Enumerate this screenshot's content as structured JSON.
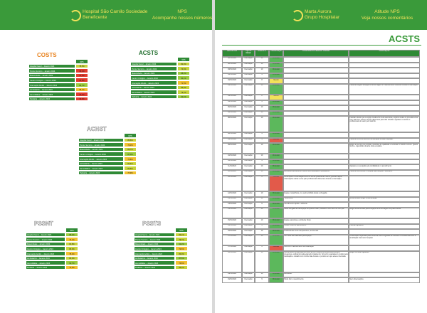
{
  "left_header": {
    "org_line1": "Hospital São Camilo Sociedade",
    "org_line2": "Beneficente",
    "title": "NPS",
    "subtitle": "Acompanhe nossos números"
  },
  "right_header": {
    "org_line1": "Marta Aurora",
    "org_line2": "Grupo Hospitalar",
    "title": "Atitude NPS",
    "subtitle": "Veja nossos comentários"
  },
  "score_tables": [
    {
      "title": "COSTS",
      "title_color": "#e8821e",
      "score_header": "NPS",
      "rows": [
        {
          "label": "Hospital Geral – Janeiro 2024",
          "score": "78,5%",
          "color": "#c8d43a"
        },
        {
          "label": "Pronto Socorro – Janeiro 2024",
          "score": "35,2%",
          "color": "#e23b2e"
        },
        {
          "label": "Maternidade – Janeiro 2024",
          "score": "41,0%",
          "color": "#e23b2e"
        },
        {
          "label": "Centro Cirúrgico – Janeiro 2024",
          "score": "44,8%",
          "color": "#e23b2e"
        },
        {
          "label": "Internação Adulto – Janeiro 2024",
          "score": "86,7%",
          "color": "#9ccc3c"
        },
        {
          "label": "Ambulatório – Janeiro 2024",
          "score": "68,1%",
          "color": "#f2c12e"
        },
        {
          "label": "Hemodiálise – Janeiro 2024",
          "score": "30,4%",
          "color": "#e23b2e"
        },
        {
          "label": "Pediatria – Janeiro 2024",
          "score": "39,9%",
          "color": "#e23b2e"
        }
      ]
    },
    {
      "title": "ACSTS",
      "title_color": "#1d6b2a",
      "score_header": "NPS",
      "rows": [
        {
          "label": "Hospital Geral – Janeiro 2024",
          "score": "82,0%",
          "color": "#c8d43a"
        },
        {
          "label": "Pronto Socorro – Janeiro 2024",
          "score": "74,6%",
          "color": "#c8d43a"
        },
        {
          "label": "Maternidade – Janeiro 2024",
          "score": "88,3%",
          "color": "#9ccc3c"
        },
        {
          "label": "Centro Cirúrgico – Janeiro 2024",
          "score": "90,1%",
          "color": "#9ccc3c"
        },
        {
          "label": "Internação Adulto – Janeiro 2024",
          "score": "71,5%",
          "color": "#f2c12e"
        },
        {
          "label": "Ambulatório – Janeiro 2024",
          "score": "85,9%",
          "color": "#c8d43a"
        },
        {
          "label": "Hemodiálise – Janeiro 2024",
          "score": "79,2%",
          "color": "#c8d43a"
        },
        {
          "label": "Pediatria – Janeiro 2024",
          "score": "92,4%",
          "color": "#9ccc3c"
        }
      ]
    },
    {
      "title": "ACHST",
      "title_color": "#ffffff",
      "score_header": "NPS",
      "rows": [
        {
          "label": "Hospital Geral – Janeiro 2024",
          "score": "80,6%",
          "color": "#c8d43a"
        },
        {
          "label": "Pronto Socorro – Janeiro 2024",
          "score": "76,3%",
          "color": "#f2c12e"
        },
        {
          "label": "Maternidade – Janeiro 2024",
          "score": "83,7%",
          "color": "#c8d43a"
        },
        {
          "label": "Centro Cirúrgico – Janeiro 2024",
          "score": "87,0%",
          "color": "#9ccc3c"
        },
        {
          "label": "Internação Adulto – Janeiro 2024",
          "score": "70,8%",
          "color": "#f2c12e"
        },
        {
          "label": "Ambulatório – Janeiro 2024",
          "score": "81,4%",
          "color": "#c8d43a"
        },
        {
          "label": "Hemodiálise – Janeiro 2024",
          "score": "84,5%",
          "color": "#c8d43a"
        },
        {
          "label": "Pediatria – Janeiro 2024",
          "score": "77,9%",
          "color": "#f2c12e"
        }
      ]
    },
    {
      "title": "PSSNT",
      "title_color": "#ffffff",
      "score_header": "NPS",
      "rows": [
        {
          "label": "Hospital Geral – Janeiro 2024",
          "score": "89,2%",
          "color": "#9ccc3c"
        },
        {
          "label": "Pronto Socorro – Janeiro 2024",
          "score": "73,1%",
          "color": "#f2c12e"
        },
        {
          "label": "Maternidade – Janeiro 2024",
          "score": "81,8%",
          "color": "#c8d43a"
        },
        {
          "label": "Centro Cirúrgico – Janeiro 2024",
          "score": "86,0%",
          "color": "#c8d43a"
        },
        {
          "label": "Internação Adulto – Janeiro 2024",
          "score": "78,4%",
          "color": "#f2c12e"
        },
        {
          "label": "Ambulatório – Janeiro 2024",
          "score": "83,3%",
          "color": "#c8d43a"
        },
        {
          "label": "Hemodiálise – Janeiro 2024",
          "score": "90,7%",
          "color": "#9ccc3c"
        },
        {
          "label": "Pediatria – Janeiro 2024",
          "score": "75,5%",
          "color": "#f2c12e"
        }
      ]
    },
    {
      "title": "PSSTS",
      "title_color": "#ffffff",
      "score_header": "NPS",
      "rows": [
        {
          "label": "Hospital Geral – Janeiro 2024",
          "score": "84,1%",
          "color": "#c8d43a"
        },
        {
          "label": "Pronto Socorro – Janeiro 2024",
          "score": "79,7%",
          "color": "#c8d43a"
        },
        {
          "label": "Maternidade – Janeiro 2024",
          "score": "91,2%",
          "color": "#9ccc3c"
        },
        {
          "label": "Centro Cirúrgico – Janeiro 2024",
          "score": "72,6%",
          "color": "#f2c12e"
        },
        {
          "label": "Internação Adulto – Janeiro 2024",
          "score": "80,0%",
          "color": "#c8d43a"
        },
        {
          "label": "Ambulatório – Janeiro 2024",
          "score": "87,5%",
          "color": "#9ccc3c"
        },
        {
          "label": "Hemodiálise – Janeiro 2024",
          "score": "76,8%",
          "color": "#f2c12e"
        },
        {
          "label": "Pediatria – Janeiro 2024",
          "score": "85,3%",
          "color": "#c8d43a"
        }
      ]
    }
  ],
  "comments": {
    "title": "ACSTS",
    "columns": [
      "Data da Alta",
      "Tipo de Atend.",
      "Nota NPS",
      "Classificação",
      "Comentário do Paciente / Familiar",
      "Observações"
    ],
    "class_colors": {
      "Promotor": "#5cb85c",
      "Neutro": "#f2e25a",
      "Detrator": "#e25a4a"
    },
    "rows": [
      [
        "02/01/2024",
        "Internação",
        10,
        "Promotor",
        "",
        ""
      ],
      [
        "02/01/2024",
        "Internação",
        10,
        "Promotor",
        "",
        ""
      ],
      [
        "03/01/2024",
        "Internação",
        10,
        "Promotor",
        "",
        ""
      ],
      [
        "03/01/2024",
        "Internação",
        9,
        "Promotor",
        "",
        ""
      ],
      [
        "04/01/2024",
        "Internação",
        8,
        "Neutro",
        "",
        ""
      ],
      [
        "04/01/2024",
        "Internação",
        10,
        "Promotor",
        "",
        "Paciente elogiou a equipe de enfermagem e o atendimento recebido durante a internação."
      ],
      [
        "05/01/2024",
        "Internação",
        8,
        "Neutro",
        "",
        ""
      ],
      [
        "05/01/2024",
        "Internação",
        9,
        "Promotor",
        "",
        ""
      ],
      [
        "06/01/2024",
        "Internação",
        10,
        "Promotor",
        "",
        ""
      ],
      [
        "06/01/2024",
        "Internação",
        10,
        "Promotor",
        "",
        ""
      ],
      [
        "08/01/2024",
        "Internação",
        10,
        "Promotor",
        "",
        "Familiar relatou que a equipe médica foi muito atenciosa, explicou todos os procedimentos com clareza e esteve sempre disponível para tirar dúvidas. Agradece a todos os profissionais do setor pelo carinho."
      ],
      [
        "08/01/2024",
        "Internação",
        9,
        "Promotor",
        "",
        ""
      ],
      [
        "09/01/2024",
        "Internação",
        5,
        "Detrator",
        "",
        "Paciente informou demora na liberação da alta hospitalar."
      ],
      [
        "09/01/2024",
        "Internação",
        10,
        "Promotor",
        "",
        "Elogio ao serviço de nutrição, refeições de qualidade e servidas no horário correto. Quarto limpo e organizado durante toda a estadia."
      ],
      [
        "10/01/2024",
        "Internação",
        10,
        "Promotor",
        "",
        ""
      ],
      [
        "10/01/2024",
        "Internação",
        9,
        "Promotor",
        "",
        ""
      ],
      [
        "11/01/2024",
        "Internação",
        10,
        "Promotor",
        "",
        "Agradece a recepção pela cordialidade no atendimento."
      ],
      [
        "11/01/2024",
        "Internação",
        10,
        "Promotor",
        "Excelente atendimento, todos muito educados e prestativos.",
        "Paciente recomenda o hospital para amigos e familiares."
      ],
      [
        "12/01/2024",
        "Internação",
        6,
        "Detrator",
        "Achei que a comunicação entre os turnos poderia ser melhor, precisei repetir informações várias vezes para profissionais diferentes durante a internação.",
        ""
      ],
      [
        "12/01/2024",
        "Internação",
        10,
        "Promotor",
        "Equipe maravilhosa, me senti acolhida desde a chegada.",
        ""
      ],
      [
        "13/01/2024",
        "Internação",
        10,
        "Promotor",
        "Tudo ótimo.",
        "Encaminhado elogio à coordenação."
      ],
      [
        "13/01/2024",
        "Internação",
        9,
        "Promotor",
        "Atendimento rápido e eficiente.",
        ""
      ],
      [
        "15/01/2024",
        "Internação",
        10,
        "Promotor",
        "Muito obrigada a toda equipe do quarto andar, cuidaram muito bem do meu pai.",
        "Elogio encaminhado para a equipe de enfermagem do quarto andar."
      ],
      [
        "15/01/2024",
        "Internação",
        10,
        "Promotor",
        "Equipe atenciosa e ambiente limpo.",
        ""
      ],
      [
        "16/01/2024",
        "Internação",
        9,
        "Promotor",
        "Gostei muito do atendimento.",
        "Familiar agradece."
      ],
      [
        "16/01/2024",
        "Internação",
        10,
        "Promotor",
        "Profissionais muito competentes, recomendo.",
        ""
      ],
      [
        "17/01/2024",
        "Internação",
        10,
        "Promotor",
        "Fui muito bem atendido pela equipe.",
        "Observação registrada pela ouvidoria sobre sugestão de melhoria no estacionamento e sinalização interna do hospital."
      ],
      [
        "17/01/2024",
        "Internação",
        6,
        "Detrator",
        "Demora no atendimento da medicação.",
        ""
      ],
      [
        "18/01/2024",
        "Internação",
        10,
        "Promotor",
        "Atendimento humanizado do início ao fim, médicos e enfermeiros sempre presentes, explicando cada etapa do tratamento. Só tenho a agradecer a todos pela dedicação e cuidado com minha mãe durante o período em que esteve internada.",
        "Elogio nominal registrado."
      ],
      [
        "19/01/2024",
        "Internação",
        10,
        "Promotor",
        "Excelente.",
        ""
      ],
      [
        "19/01/2024",
        "Internação",
        9,
        "Promotor",
        "Muito bom o atendimento.",
        "Sem observações."
      ]
    ]
  }
}
